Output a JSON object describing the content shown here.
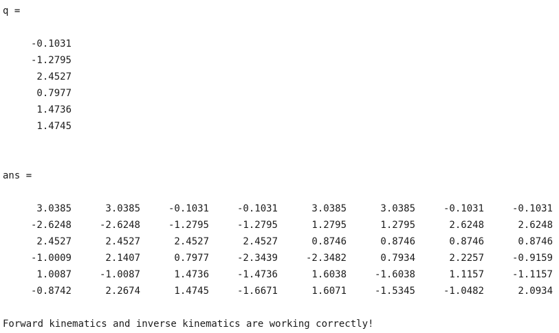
{
  "console": {
    "q_label": "q =",
    "q_values": [
      "-0.1031",
      "-1.2795",
      "2.4527",
      "0.7977",
      "1.4736",
      "1.4745"
    ],
    "ans_label": "ans =",
    "ans_matrix": [
      [
        "3.0385",
        "3.0385",
        "-0.1031",
        "-0.1031",
        "3.0385",
        "3.0385",
        "-0.1031",
        "-0.1031"
      ],
      [
        "-2.6248",
        "-2.6248",
        "-1.2795",
        "-1.2795",
        "1.2795",
        "1.2795",
        "2.6248",
        "2.6248"
      ],
      [
        "2.4527",
        "2.4527",
        "2.4527",
        "2.4527",
        "0.8746",
        "0.8746",
        "0.8746",
        "0.8746"
      ],
      [
        "-1.0009",
        "2.1407",
        "0.7977",
        "-2.3439",
        "-2.3482",
        "0.7934",
        "2.2257",
        "-0.9159"
      ],
      [
        "1.0087",
        "-1.0087",
        "1.4736",
        "-1.4736",
        "1.6038",
        "-1.6038",
        "1.1157",
        "-1.1157"
      ],
      [
        "-0.8742",
        "2.2674",
        "1.4745",
        "-1.6671",
        "1.6071",
        "-1.5345",
        "-1.0482",
        "2.0934"
      ]
    ],
    "message": "Forward kinematics and inverse kinematics are working correctly!"
  }
}
